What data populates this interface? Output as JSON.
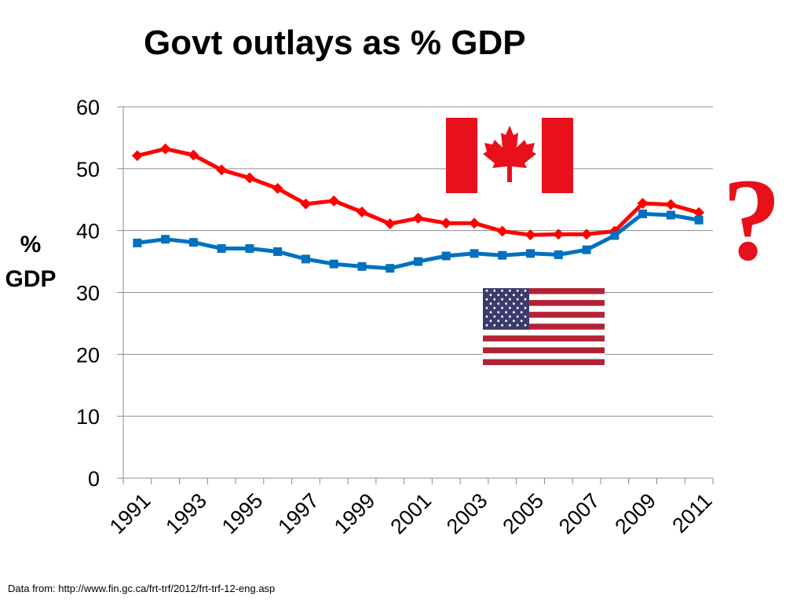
{
  "slide": {
    "title": "Govt outlays as % GDP",
    "ylabel_line1": "%",
    "ylabel_line2": "GDP",
    "annotation": "?",
    "footnote": "Data from: http://www.fin.gc.ca/frt-trf/2012/frt-trf-12-eng.asp"
  },
  "chart_data": {
    "type": "line",
    "title": "Govt outlays as % GDP",
    "xlabel": "",
    "ylabel": "% GDP",
    "x": [
      1991,
      1992,
      1993,
      1994,
      1995,
      1996,
      1997,
      1998,
      1999,
      2000,
      2001,
      2002,
      2003,
      2004,
      2005,
      2006,
      2007,
      2008,
      2009,
      2010,
      2011
    ],
    "xtick_labels": [
      "1991",
      "1993",
      "1995",
      "1997",
      "1999",
      "2001",
      "2003",
      "2005",
      "2007",
      "2009",
      "2011"
    ],
    "yticks": [
      0,
      10,
      20,
      30,
      40,
      50,
      60
    ],
    "ylim": [
      0,
      60
    ],
    "grid": true,
    "series": [
      {
        "name": "",
        "identified_by": "canada-flag",
        "color": "#ff0000",
        "marker": "diamond",
        "values": [
          52.1,
          53.2,
          52.2,
          49.8,
          48.5,
          46.8,
          44.3,
          44.8,
          43.0,
          41.1,
          42.0,
          41.2,
          41.2,
          39.9,
          39.3,
          39.4,
          39.4,
          39.9,
          44.4,
          44.2,
          42.9
        ]
      },
      {
        "name": "",
        "identified_by": "usa-flag",
        "color": "#0070c0",
        "marker": "square",
        "values": [
          38.0,
          38.6,
          38.1,
          37.1,
          37.1,
          36.6,
          35.4,
          34.6,
          34.2,
          33.9,
          35.0,
          35.9,
          36.3,
          36.0,
          36.3,
          36.1,
          36.9,
          39.2,
          42.7,
          42.5,
          41.7
        ]
      }
    ]
  },
  "colors": {
    "canada_red": "#e8101a",
    "usa_red": "#b22234",
    "usa_blue": "#3c3b6e"
  }
}
